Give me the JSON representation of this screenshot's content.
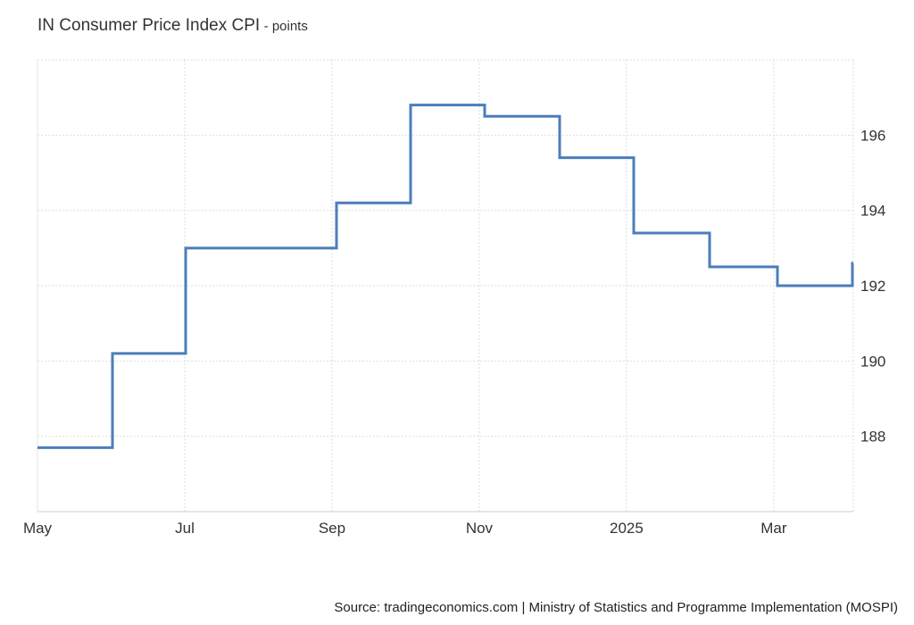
{
  "header": {
    "title": "IN Consumer Price Index CPI",
    "unit_suffix": "- points"
  },
  "chart_data": {
    "type": "line",
    "step": true,
    "title": "IN Consumer Price Index CPI",
    "ylabel": "points",
    "series": [
      {
        "color": "#4a7ebb",
        "x": [
          "2024-05",
          "2024-06",
          "2024-07",
          "2024-08",
          "2024-09",
          "2024-10",
          "2024-11",
          "2024-12",
          "2025-01",
          "2025-02",
          "2025-03",
          "2025-04"
        ],
        "values": [
          187.7,
          190.2,
          193.0,
          193.0,
          194.2,
          196.8,
          196.5,
          195.4,
          193.4,
          192.5,
          192.0,
          192.6
        ]
      }
    ],
    "x_ticks": [
      "May",
      "Jul",
      "Sep",
      "Nov",
      "2025",
      "Mar"
    ],
    "y_ticks": [
      188,
      190,
      192,
      194,
      196
    ],
    "ylim": [
      186.0,
      198.0
    ],
    "grid": true,
    "legend": "none"
  },
  "footer": {
    "source": "Source: tradingeconomics.com | Ministry of Statistics and Programme Implementation (MOSPI)"
  }
}
